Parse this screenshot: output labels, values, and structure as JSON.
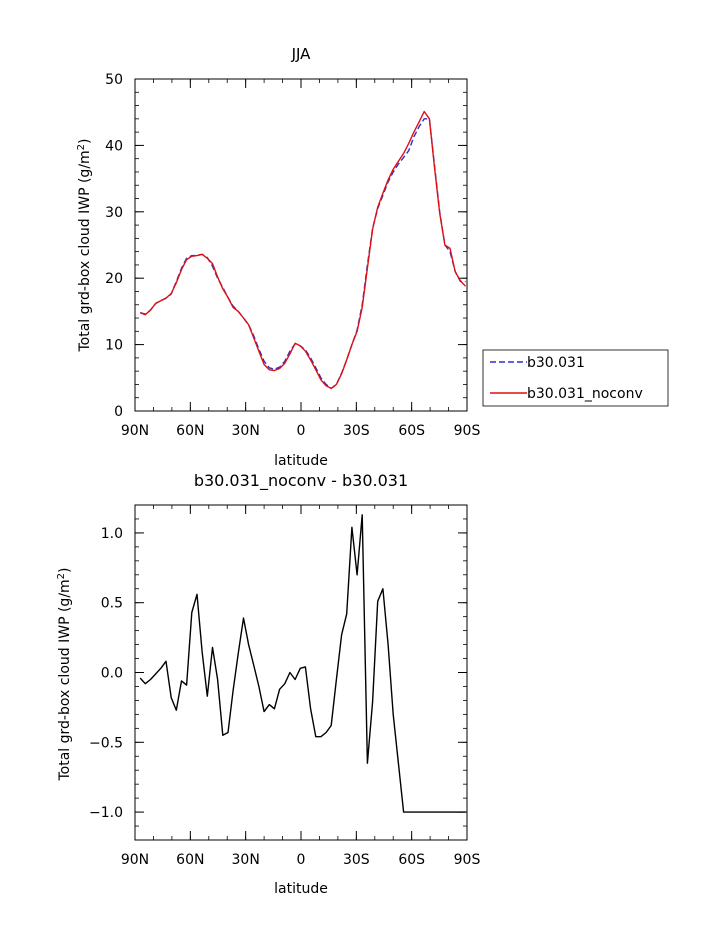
{
  "chart_data": [
    {
      "type": "line",
      "title": "JJA",
      "xlabel": "latitude",
      "ylabel": "Total grd-box cloud IWP (g/m²)",
      "xlim": [
        -90,
        90
      ],
      "ylim": [
        0,
        50
      ],
      "xticks": [
        -90,
        -60,
        -30,
        0,
        30,
        60,
        90
      ],
      "xtick_labels": [
        "90N",
        "60N",
        "30N",
        "0",
        "30S",
        "60S",
        "90S"
      ],
      "yticks": [
        0,
        10,
        20,
        30,
        40,
        50
      ],
      "ytick_labels": [
        "0",
        "10",
        "20",
        "30",
        "40",
        "50"
      ],
      "legend": "right",
      "x": [
        -87.2,
        -84.4,
        -81.6,
        -78.8,
        -76.0,
        -73.2,
        -70.4,
        -67.6,
        -64.8,
        -62.0,
        -59.2,
        -56.4,
        -53.6,
        -50.8,
        -48.0,
        -45.2,
        -42.4,
        -39.6,
        -36.8,
        -34.0,
        -31.2,
        -28.4,
        -25.6,
        -22.8,
        -20.0,
        -17.2,
        -14.4,
        -11.6,
        -8.8,
        -6.0,
        -3.2,
        -0.4,
        2.4,
        5.2,
        8.0,
        10.8,
        13.6,
        16.4,
        19.2,
        22.0,
        24.8,
        27.6,
        30.4,
        33.2,
        36.0,
        38.8,
        41.6,
        44.4,
        47.2,
        50.0,
        52.8,
        55.6,
        58.4,
        61.2,
        64.0,
        66.8,
        69.6,
        72.4,
        75.2,
        78.0,
        80.8,
        83.6,
        86.4,
        89.2
      ],
      "series": [
        {
          "name": "b30.031",
          "color": "#2f2fd0",
          "dash": "dashed",
          "values": [
            14.8,
            14.6,
            15.2,
            16.2,
            16.6,
            17.0,
            17.6,
            19.5,
            21.5,
            23.0,
            23.4,
            23.4,
            23.6,
            23.1,
            21.8,
            20.0,
            18.6,
            17.1,
            15.8,
            15.0,
            14.0,
            13.0,
            11.3,
            9.3,
            7.5,
            6.5,
            6.3,
            6.6,
            7.5,
            9.0,
            10.1,
            9.8,
            9.2,
            8.0,
            6.5,
            5.0,
            4.0,
            3.4,
            4.0,
            5.7,
            7.7,
            10.0,
            12.2,
            16.0,
            22.0,
            27.5,
            30.5,
            32.5,
            34.5,
            36.0,
            37.2,
            38.2,
            39.2,
            41.3,
            42.8,
            44.0,
            44.0,
            37.0,
            30.0,
            25.0,
            24.0,
            21.0,
            19.5,
            19.5
          ]
        },
        {
          "name": "b30.031_noconv",
          "color": "#dd1111",
          "dash": "solid",
          "values": [
            14.8,
            14.5,
            15.2,
            16.2,
            16.6,
            17.0,
            17.7,
            19.3,
            21.3,
            22.8,
            23.3,
            23.4,
            23.6,
            23.0,
            22.2,
            20.2,
            18.4,
            17.1,
            15.6,
            15.0,
            14.0,
            13.0,
            11.0,
            9.0,
            7.0,
            6.2,
            6.1,
            6.4,
            7.2,
            8.6,
            10.2,
            9.8,
            9.0,
            7.7,
            6.2,
            4.7,
            3.8,
            3.4,
            4.0,
            5.6,
            7.7,
            10.0,
            12.0,
            15.6,
            21.5,
            27.4,
            30.7,
            32.8,
            34.8,
            36.4,
            37.6,
            38.8,
            40.3,
            42.0,
            43.5,
            45.1,
            44.0,
            36.7,
            29.8,
            25.0,
            24.5,
            21.0,
            19.6,
            18.8
          ]
        }
      ]
    },
    {
      "type": "line",
      "title": "b30.031_noconv - b30.031",
      "xlabel": "latitude",
      "ylabel": "Total grd-box cloud IWP (g/m²)",
      "xlim": [
        -90,
        90
      ],
      "ylim": [
        -1.2,
        1.2
      ],
      "xticks": [
        -90,
        -60,
        -30,
        0,
        30,
        60,
        90
      ],
      "xtick_labels": [
        "90N",
        "60N",
        "30N",
        "0",
        "30S",
        "60S",
        "90S"
      ],
      "yticks": [
        -1.0,
        -0.5,
        0.0,
        0.5,
        1.0
      ],
      "ytick_labels": [
        "−1.0",
        "−0.5",
        "0.0",
        "0.5",
        "1.0"
      ],
      "x": [
        -87.2,
        -84.4,
        -81.6,
        -78.8,
        -76.0,
        -73.2,
        -70.4,
        -67.6,
        -64.8,
        -62.0,
        -59.2,
        -56.4,
        -53.6,
        -50.8,
        -48.0,
        -45.2,
        -42.4,
        -39.6,
        -36.8,
        -34.0,
        -31.2,
        -28.4,
        -25.6,
        -22.8,
        -20.0,
        -17.2,
        -14.4,
        -11.6,
        -8.8,
        -6.0,
        -3.2,
        -0.4,
        2.4,
        5.2,
        8.0,
        10.8,
        13.6,
        16.4,
        19.2,
        22.0,
        24.8,
        27.6,
        30.4,
        33.2,
        36.0,
        38.8,
        41.6,
        44.4,
        47.2,
        50.0,
        52.8,
        55.6,
        58.4,
        61.2,
        64.0,
        66.8,
        69.6,
        72.4,
        75.2,
        78.0,
        80.8,
        83.6,
        86.4,
        89.2
      ],
      "series": [
        {
          "color": "#000000",
          "values": [
            -0.04,
            -0.08,
            -0.05,
            -0.01,
            0.03,
            0.08,
            -0.18,
            -0.27,
            -0.06,
            -0.09,
            0.43,
            0.56,
            0.15,
            -0.17,
            0.18,
            -0.05,
            -0.45,
            -0.43,
            -0.13,
            0.14,
            0.39,
            0.2,
            0.05,
            -0.1,
            -0.28,
            -0.23,
            -0.26,
            -0.12,
            -0.08,
            0.0,
            -0.05,
            0.03,
            0.04,
            -0.26,
            -0.46,
            -0.46,
            -0.43,
            -0.38,
            -0.05,
            0.27,
            0.42,
            1.04,
            0.7,
            1.13,
            -0.65,
            -0.21,
            0.51,
            0.6,
            0.2,
            -0.3,
            -0.65,
            -1.0,
            -1.0,
            -1.0,
            -1.0,
            -1.0,
            -1.0,
            -1.0,
            -1.0,
            -1.0,
            -1.0,
            -1.0,
            -1.0,
            -1.0
          ]
        }
      ]
    }
  ]
}
